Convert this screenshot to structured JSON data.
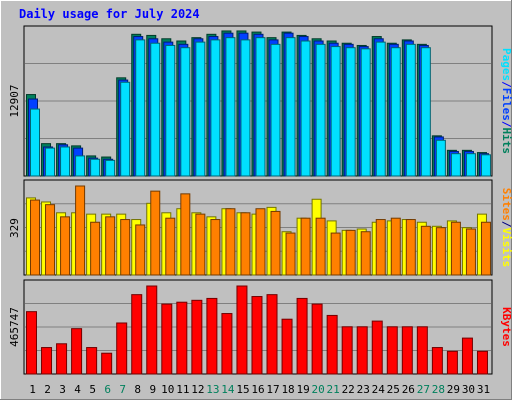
{
  "title": "Daily usage for July 2024",
  "colors": {
    "background": "#C0C0C0",
    "title": "#0000FF",
    "hits": "#00805C",
    "files": "#0040FF",
    "pages": "#00E0FF",
    "visits": "#FFFF00",
    "sites": "#FF8000",
    "kbytes": "#FF0000",
    "weekday_label": "#000000",
    "weekend_label": "#00805C"
  },
  "chart_data": [
    {
      "type": "bar",
      "name": "pages-files-hits",
      "ymax_label": "12907",
      "ymax": 12907,
      "ylabel_parts": [
        "Pages",
        "/",
        "Files",
        "/",
        "Hits"
      ],
      "categories": [
        "1",
        "2",
        "3",
        "4",
        "5",
        "6",
        "7",
        "8",
        "9",
        "10",
        "11",
        "12",
        "13",
        "14",
        "15",
        "16",
        "17",
        "18",
        "19",
        "20",
        "21",
        "22",
        "23",
        "24",
        "25",
        "26",
        "27",
        "28",
        "29",
        "30",
        "31"
      ],
      "series": [
        {
          "name": "Hits",
          "values": [
            7300,
            2900,
            2900,
            2700,
            1800,
            1700,
            8800,
            12700,
            12600,
            12300,
            12100,
            12400,
            12700,
            13000,
            13000,
            12900,
            12400,
            12900,
            12600,
            12300,
            12100,
            11900,
            11700,
            12500,
            11900,
            12200,
            11800,
            3600,
            2300,
            2300,
            2100
          ]
        },
        {
          "name": "Files",
          "values": [
            6900,
            2600,
            2800,
            2500,
            1600,
            1500,
            8600,
            12500,
            12300,
            12000,
            11800,
            12300,
            12500,
            12800,
            12800,
            12700,
            12200,
            12800,
            12500,
            12100,
            11900,
            11800,
            11600,
            12300,
            11800,
            12100,
            11700,
            3500,
            2200,
            2200,
            2000
          ]
        },
        {
          "name": "Pages",
          "values": [
            6000,
            2500,
            2600,
            1800,
            1500,
            1400,
            8400,
            12200,
            11900,
            11700,
            11500,
            12000,
            12200,
            12400,
            12200,
            12400,
            11800,
            12400,
            12100,
            11800,
            11600,
            11500,
            11400,
            12000,
            11500,
            11800,
            11500,
            3200,
            2000,
            2000,
            1900
          ]
        }
      ]
    },
    {
      "type": "bar",
      "name": "sites-visits",
      "ymax_label": "329",
      "ymax": 329,
      "ylabel_parts": [
        "Sites",
        "/",
        "Visits"
      ],
      "categories": [
        "1",
        "2",
        "3",
        "4",
        "5",
        "6",
        "7",
        "8",
        "9",
        "10",
        "11",
        "12",
        "13",
        "14",
        "15",
        "16",
        "17",
        "18",
        "19",
        "20",
        "21",
        "22",
        "23",
        "24",
        "25",
        "26",
        "27",
        "28",
        "29",
        "30",
        "31"
      ],
      "series": [
        {
          "name": "Visits",
          "values": [
            285,
            270,
            230,
            230,
            225,
            225,
            225,
            205,
            265,
            230,
            245,
            230,
            215,
            245,
            230,
            225,
            250,
            160,
            210,
            280,
            200,
            165,
            170,
            195,
            200,
            205,
            195,
            180,
            200,
            175,
            225
          ]
        },
        {
          "name": "Sites",
          "values": [
            277,
            260,
            215,
            329,
            195,
            215,
            205,
            185,
            310,
            210,
            300,
            225,
            205,
            245,
            230,
            245,
            235,
            155,
            210,
            210,
            155,
            165,
            160,
            205,
            210,
            205,
            180,
            175,
            195,
            170,
            195
          ]
        }
      ]
    },
    {
      "type": "bar",
      "name": "kbytes",
      "ymax_label": "465747",
      "ymax": 465747,
      "ylabel_parts": [
        "KBytes"
      ],
      "categories": [
        "1",
        "2",
        "3",
        "4",
        "5",
        "6",
        "7",
        "8",
        "9",
        "10",
        "11",
        "12",
        "13",
        "14",
        "15",
        "16",
        "17",
        "18",
        "19",
        "20",
        "21",
        "22",
        "23",
        "24",
        "25",
        "26",
        "27",
        "28",
        "29",
        "30",
        "31"
      ],
      "series": [
        {
          "name": "KBytes",
          "values": [
            330000,
            140000,
            160000,
            240000,
            140000,
            110000,
            270000,
            420000,
            465747,
            370000,
            380000,
            390000,
            400000,
            320000,
            465747,
            410000,
            420000,
            290000,
            400000,
            370000,
            310000,
            250000,
            250000,
            280000,
            250000,
            250000,
            250000,
            140000,
            120000,
            190000,
            120000
          ]
        }
      ]
    }
  ],
  "x_labels": [
    {
      "text": "1",
      "weekend": false
    },
    {
      "text": "2",
      "weekend": false
    },
    {
      "text": "3",
      "weekend": false
    },
    {
      "text": "4",
      "weekend": false
    },
    {
      "text": "5",
      "weekend": false
    },
    {
      "text": "6",
      "weekend": true
    },
    {
      "text": "7",
      "weekend": true
    },
    {
      "text": "8",
      "weekend": false
    },
    {
      "text": "9",
      "weekend": false
    },
    {
      "text": "10",
      "weekend": false
    },
    {
      "text": "11",
      "weekend": false
    },
    {
      "text": "12",
      "weekend": false
    },
    {
      "text": "13",
      "weekend": true
    },
    {
      "text": "14",
      "weekend": true
    },
    {
      "text": "15",
      "weekend": false
    },
    {
      "text": "16",
      "weekend": false
    },
    {
      "text": "17",
      "weekend": false
    },
    {
      "text": "18",
      "weekend": false
    },
    {
      "text": "19",
      "weekend": false
    },
    {
      "text": "20",
      "weekend": true
    },
    {
      "text": "21",
      "weekend": true
    },
    {
      "text": "22",
      "weekend": false
    },
    {
      "text": "23",
      "weekend": false
    },
    {
      "text": "24",
      "weekend": false
    },
    {
      "text": "25",
      "weekend": false
    },
    {
      "text": "26",
      "weekend": false
    },
    {
      "text": "27",
      "weekend": true
    },
    {
      "text": "28",
      "weekend": true
    },
    {
      "text": "29",
      "weekend": false
    },
    {
      "text": "30",
      "weekend": false
    },
    {
      "text": "31",
      "weekend": false
    }
  ]
}
